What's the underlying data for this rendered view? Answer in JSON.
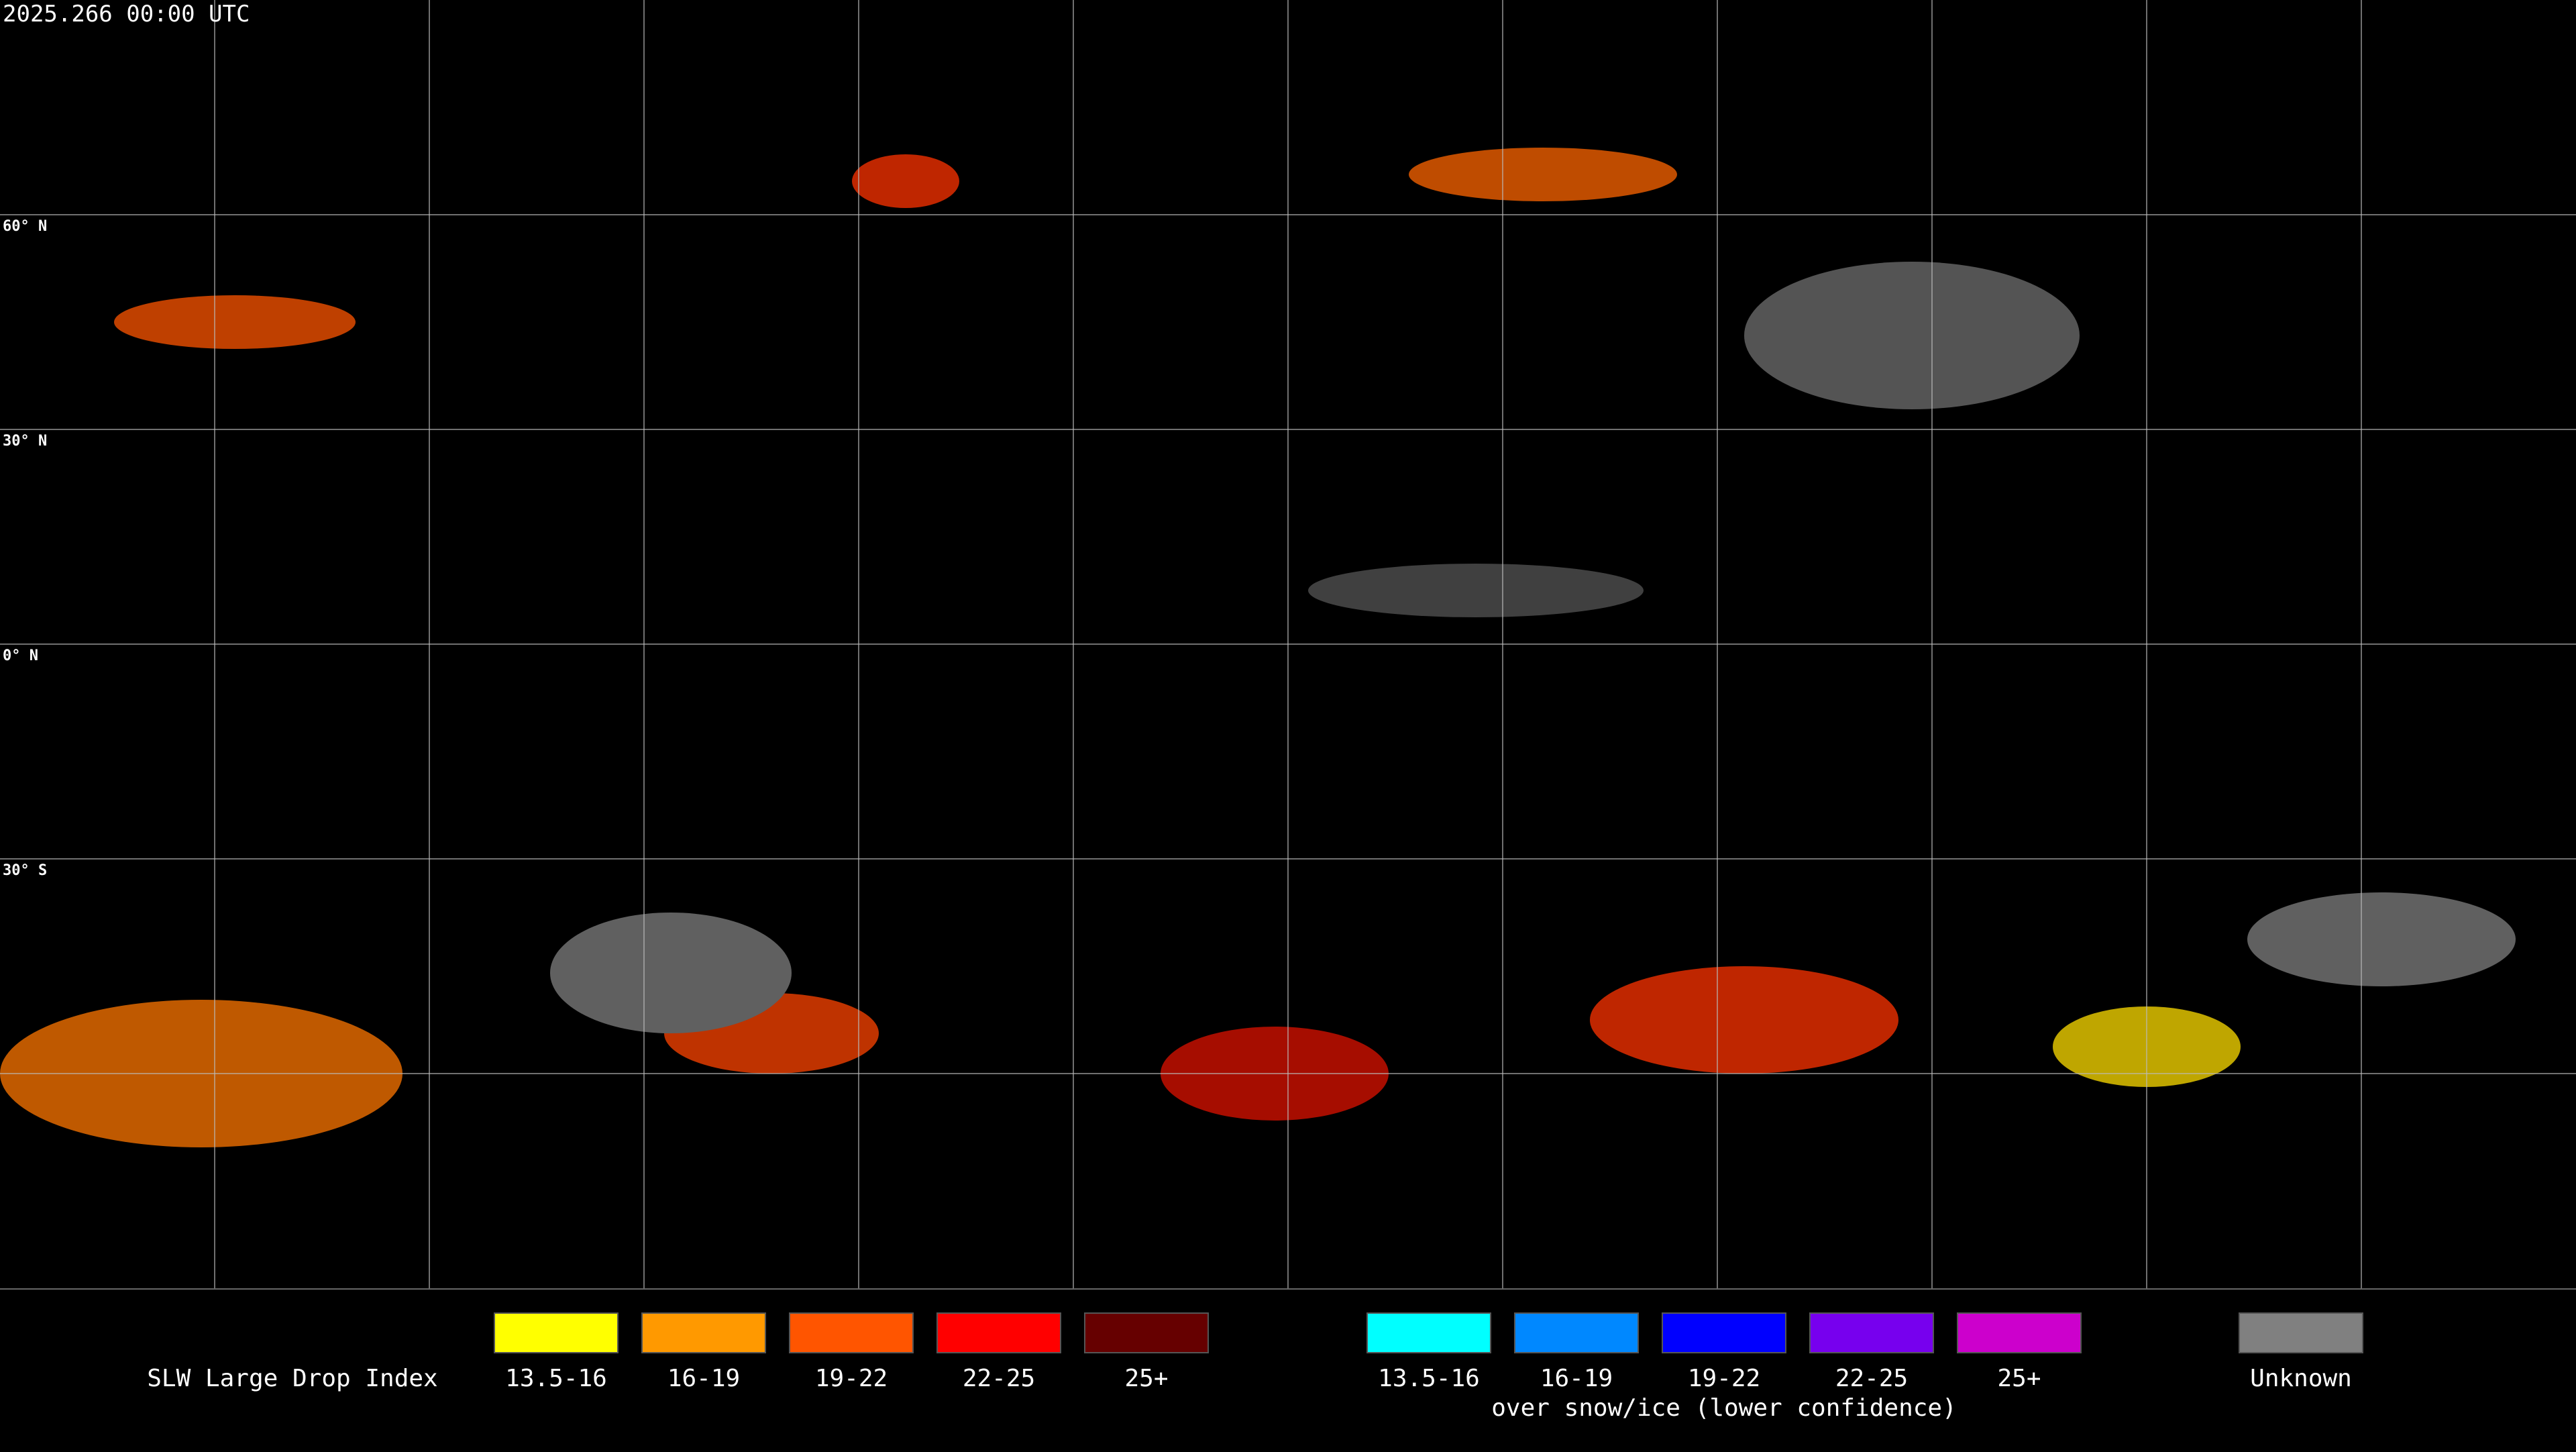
{
  "header": {
    "timestamp": "2025.266 00:00 UTC"
  },
  "map": {
    "lat_labels": [
      "60° N",
      "30° N",
      "0° N",
      "30° S"
    ]
  },
  "legend": {
    "title": "SLW Large Drop Index",
    "groups": [
      {
        "items": [
          {
            "label": "13.5-16",
            "color": "#ffff00"
          },
          {
            "label": "16-19",
            "color": "#ff9900"
          },
          {
            "label": "19-22",
            "color": "#ff5500"
          },
          {
            "label": "22-25",
            "color": "#ff0000"
          },
          {
            "label": "25+",
            "color": "#660000"
          }
        ]
      },
      {
        "items": [
          {
            "label": "13.5-16",
            "color": "#00ffff"
          },
          {
            "label": "16-19",
            "color": "#0088ff"
          },
          {
            "label": "19-22",
            "color": "#0000ff"
          },
          {
            "label": "22-25",
            "color": "#7700ee"
          },
          {
            "label": "25+",
            "color": "#cc00cc"
          }
        ],
        "caption": "over snow/ice (lower confidence)"
      },
      {
        "items": [
          {
            "label": "Unknown",
            "color": "#808080"
          }
        ]
      }
    ]
  }
}
